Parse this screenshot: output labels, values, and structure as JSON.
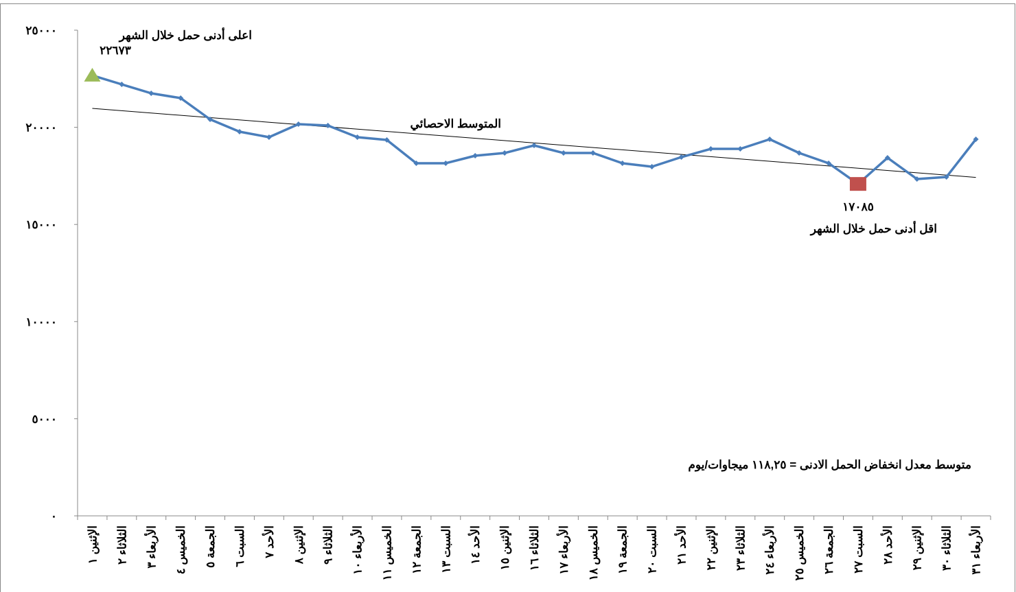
{
  "chart_data": {
    "type": "line",
    "categories": [
      "الإثنين ١",
      "الثلاثاء ٢",
      "الأربعاء ٣",
      "الخميس ٤",
      "الجمعة ٥",
      "السبت ٦",
      "الأحد ٧",
      "الإثنين ٨",
      "الثلاثاء ٩",
      "الأربعاء ١٠",
      "الخميس ١١",
      "الجمعة ١٢",
      "السبت ١٣",
      "الأحد ١٤",
      "الإثنين ١٥",
      "الثلاثاء ١٦",
      "الأربعاء ١٧",
      "الخميس ١٨",
      "الجمعة ١٩",
      "السبت ٢٠",
      "الأحد ٢١",
      "الإثنين ٢٢",
      "الثلاثاء ٢٣",
      "الأربعاء ٢٤",
      "الخميس ٢٥",
      "الجمعة ٢٦",
      "السبت ٢٧",
      "الأحد ٢٨",
      "الإثنين ٢٩",
      "الثلاثاء ٣٠",
      "الأربعاء ٣١"
    ],
    "values": [
      22673,
      22210,
      21751,
      21504,
      20410,
      19774,
      19492,
      20162,
      20092,
      19492,
      19350,
      18150,
      18150,
      18538,
      18679,
      19068,
      18679,
      18679,
      18150,
      17973,
      18467,
      18891,
      18891,
      19386,
      18679,
      18150,
      17085,
      18432,
      17337,
      17443,
      19386
    ],
    "color": "#4a7ebb",
    "max_color": "#9bbb59",
    "min_color": "#c0504d",
    "ylim": [
      0,
      25000
    ],
    "yticks": [
      {
        "value": 0,
        "label": "٠"
      },
      {
        "value": 5000,
        "label": "٥٠٠٠"
      },
      {
        "value": 10000,
        "label": "١٠٠٠٠"
      },
      {
        "value": 15000,
        "label": "١٥٠٠٠"
      },
      {
        "value": 20000,
        "label": "٢٠٠٠٠"
      },
      {
        "value": 25000,
        "label": "٢٥٠٠٠"
      }
    ],
    "trendline_label": "المتوسط الاحصائي",
    "max_label": "اعلى  أدنى حمل خلال الشهر",
    "max_value_label": "٢٢٦٧٣",
    "min_label": "اقل  أدنى حمل خلال الشهر",
    "min_value_label": "١٧٠٨٥",
    "note": "متوسط معدل انخفاض الحمل الادنى = ١١٨,٢٥ ميجاوات/يوم"
  }
}
